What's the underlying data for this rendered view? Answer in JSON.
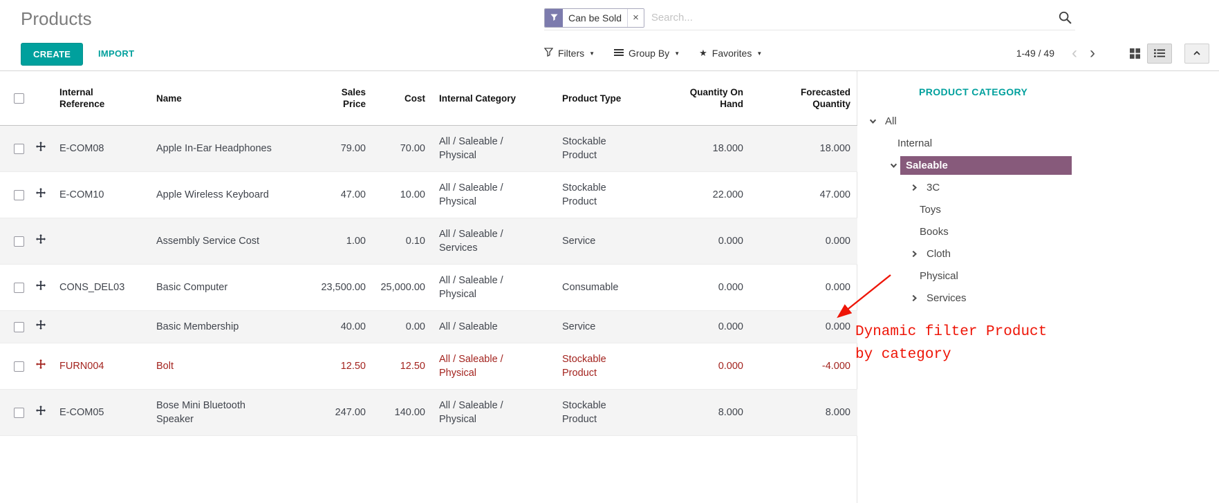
{
  "page": {
    "title": "Products"
  },
  "search": {
    "facet_label": "Can be Sold",
    "remove_glyph": "×",
    "placeholder": "Search..."
  },
  "toolbar": {
    "create": "CREATE",
    "import": "IMPORT",
    "filters": "Filters",
    "group_by": "Group By",
    "favorites": "Favorites",
    "pagination": "1-49 / 49",
    "prev_glyph": "‹",
    "next_glyph": "›",
    "favorites_star": "★"
  },
  "table": {
    "columns": [
      "Internal Reference",
      "Name",
      "Sales Price",
      "Cost",
      "Internal Category",
      "Product Type",
      "Quantity On Hand",
      "Forecasted Quantity"
    ],
    "rows": [
      {
        "ref": "E-COM08",
        "name": "Apple In-Ear Headphones",
        "sales_price": "79.00",
        "cost": "70.00",
        "category": "All / Saleable / Physical",
        "type": "Stockable Product",
        "qty_on_hand": "18.000",
        "forecasted": "18.000",
        "danger": false
      },
      {
        "ref": "E-COM10",
        "name": "Apple Wireless Keyboard",
        "sales_price": "47.00",
        "cost": "10.00",
        "category": "All / Saleable / Physical",
        "type": "Stockable Product",
        "qty_on_hand": "22.000",
        "forecasted": "47.000",
        "danger": false
      },
      {
        "ref": "",
        "name": "Assembly Service Cost",
        "sales_price": "1.00",
        "cost": "0.10",
        "category": "All / Saleable / Services",
        "type": "Service",
        "qty_on_hand": "0.000",
        "forecasted": "0.000",
        "danger": false
      },
      {
        "ref": "CONS_DEL03",
        "name": "Basic Computer",
        "sales_price": "23,500.00",
        "cost": "25,000.00",
        "category": "All / Saleable / Physical",
        "type": "Consumable",
        "qty_on_hand": "0.000",
        "forecasted": "0.000",
        "danger": false
      },
      {
        "ref": "",
        "name": "Basic Membership",
        "sales_price": "40.00",
        "cost": "0.00",
        "category": "All / Saleable",
        "type": "Service",
        "qty_on_hand": "0.000",
        "forecasted": "0.000",
        "danger": false
      },
      {
        "ref": "FURN004",
        "name": "Bolt",
        "sales_price": "12.50",
        "cost": "12.50",
        "category": "All / Saleable / Physical",
        "type": "Stockable Product",
        "qty_on_hand": "0.000",
        "forecasted": "-4.000",
        "danger": true
      },
      {
        "ref": "E-COM05",
        "name": "Bose Mini Bluetooth Speaker",
        "sales_price": "247.00",
        "cost": "140.00",
        "category": "All / Saleable / Physical",
        "type": "Stockable Product",
        "qty_on_hand": "8.000",
        "forecasted": "8.000",
        "danger": false
      }
    ]
  },
  "sidebar": {
    "title": "PRODUCT CATEGORY",
    "items": [
      {
        "label": "All",
        "level": 0,
        "chevron": "down",
        "selected": false
      },
      {
        "label": "Internal",
        "level": 1,
        "chevron": "none",
        "selected": false
      },
      {
        "label": "Saleable",
        "level": 1,
        "chevron": "down",
        "selected": true
      },
      {
        "label": "3C",
        "level": 2,
        "chevron": "right",
        "selected": false
      },
      {
        "label": "Toys",
        "level": 2,
        "chevron": "none",
        "selected": false
      },
      {
        "label": "Books",
        "level": 2,
        "chevron": "none",
        "selected": false
      },
      {
        "label": "Cloth",
        "level": 2,
        "chevron": "right",
        "selected": false
      },
      {
        "label": "Physical",
        "level": 2,
        "chevron": "none",
        "selected": false
      },
      {
        "label": "Services",
        "level": 2,
        "chevron": "right",
        "selected": false
      }
    ]
  },
  "annotation": {
    "line1": "Dynamic filter Product",
    "line2": "by category"
  },
  "colors": {
    "teal": "#00a09d",
    "facet_purple": "#7c7bad",
    "selected_purple": "#875a7b",
    "danger_red": "#a3231e",
    "annotation_red": "#ee1507"
  }
}
